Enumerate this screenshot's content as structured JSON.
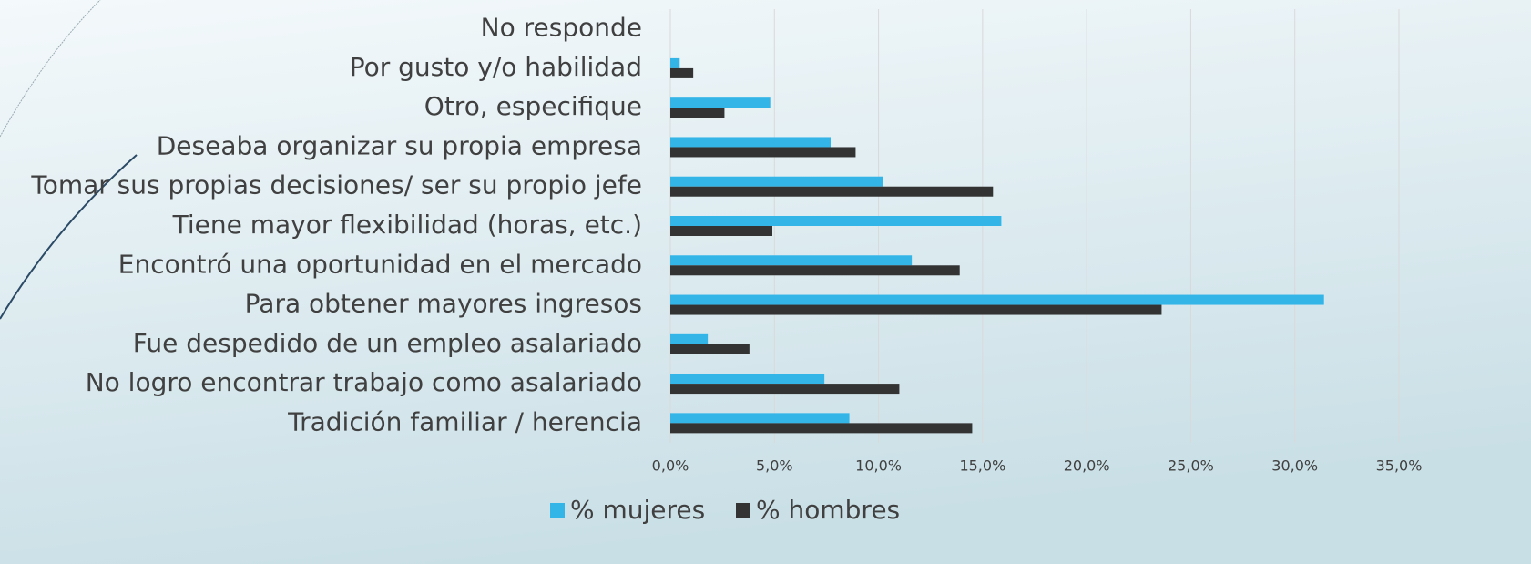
{
  "chart_data": {
    "type": "barh",
    "categories": [
      "No responde",
      "Por gusto y/o habilidad",
      "Otro, especifique",
      "Deseaba organizar su propia empresa",
      "Tomar sus propias decisiones/ ser su propio jefe",
      "Tiene mayor flexibilidad (horas, etc.)",
      "Encontró una oportunidad en el mercado",
      "Para obtener mayores ingresos",
      "Fue despedido de un empleo asalariado",
      "No logro encontrar trabajo como asalariado",
      "Tradición familiar / herencia"
    ],
    "series": [
      {
        "name": "% mujeres",
        "color": "#33b5e8",
        "values": [
          0,
          0.45,
          4.8,
          7.7,
          10.2,
          15.9,
          11.6,
          31.4,
          1.8,
          7.4,
          8.6
        ]
      },
      {
        "name": "% hombres",
        "color": "#333333",
        "values": [
          0,
          1.1,
          2.6,
          8.9,
          15.5,
          4.9,
          13.9,
          23.6,
          3.8,
          11.0,
          14.5
        ]
      }
    ],
    "xlim": [
      0,
      35
    ],
    "xticks": [
      {
        "value": 0,
        "label": "0,0%"
      },
      {
        "value": 5,
        "label": "5,0%"
      },
      {
        "value": 10,
        "label": "10,0%"
      },
      {
        "value": 15,
        "label": "15,0%"
      },
      {
        "value": 20,
        "label": "20,0%"
      },
      {
        "value": 25,
        "label": "25,0%"
      },
      {
        "value": 30,
        "label": "30,0%"
      },
      {
        "value": 35,
        "label": "35,0%"
      }
    ],
    "grid": true,
    "legend": "bottom"
  }
}
